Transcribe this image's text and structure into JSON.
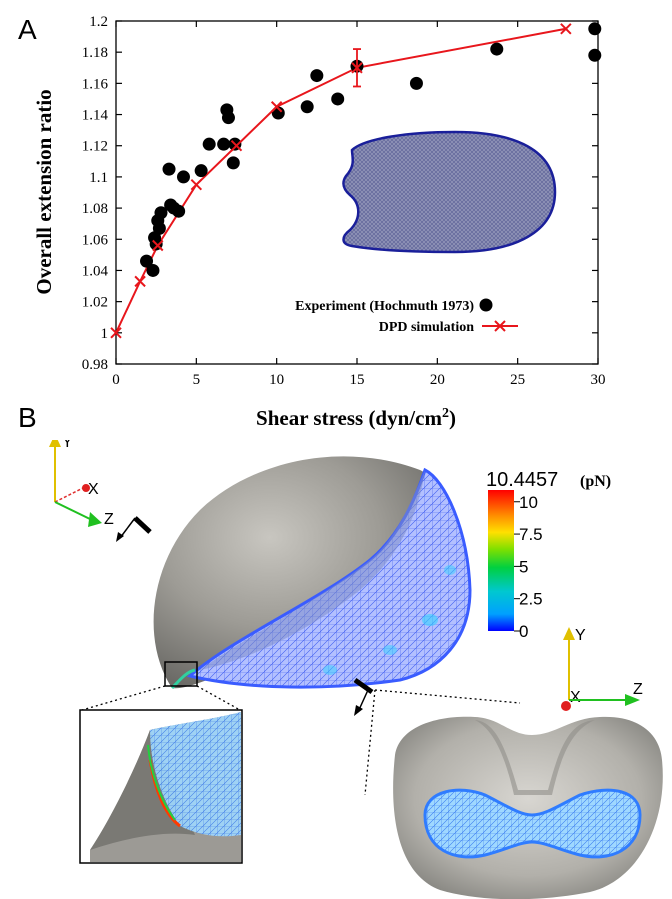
{
  "panels": {
    "a_label": "A",
    "b_label": "B"
  },
  "chart_data": {
    "type": "scatter",
    "xlabel_main": "Shear stress (dyn/cm",
    "xlabel_sup": "2",
    "xlabel_close": ")",
    "ylabel": "Overall extension ratio",
    "xlim": [
      0,
      30
    ],
    "ylim": [
      0.98,
      1.2
    ],
    "x_ticks": [
      "0",
      "5",
      "10",
      "15",
      "20",
      "25",
      "30"
    ],
    "y_ticks": [
      "0.98",
      "1",
      "1.02",
      "1.04",
      "1.06",
      "1.08",
      "1.1",
      "1.12",
      "1.14",
      "1.16",
      "1.18",
      "1.2"
    ],
    "grid": false,
    "legend_position": "lower-right",
    "series": [
      {
        "name": "Experiment (Hochmuth 1973)",
        "kind": "scatter",
        "color": "#000000",
        "x": [
          1.9,
          2.3,
          2.4,
          2.5,
          2.6,
          2.7,
          2.8,
          3.3,
          3.4,
          3.6,
          3.9,
          4.2,
          5.3,
          5.8,
          6.7,
          6.9,
          7.0,
          7.3,
          7.4,
          10.1,
          11.9,
          12.5,
          13.8,
          15.0,
          18.7,
          23.7,
          29.8,
          29.8
        ],
        "y": [
          1.046,
          1.04,
          1.061,
          1.057,
          1.072,
          1.067,
          1.077,
          1.105,
          1.082,
          1.08,
          1.078,
          1.1,
          1.104,
          1.121,
          1.121,
          1.143,
          1.138,
          1.109,
          1.121,
          1.141,
          1.145,
          1.165,
          1.15,
          1.171,
          1.16,
          1.182,
          1.195,
          1.178
        ]
      },
      {
        "name": "DPD simulation",
        "kind": "line-marker",
        "color": "#e8161c",
        "x": [
          0,
          1.5,
          2.6,
          5.0,
          7.5,
          10.0,
          15.0,
          28.0
        ],
        "y": [
          1.0,
          1.033,
          1.056,
          1.095,
          1.12,
          1.145,
          1.17,
          1.195
        ],
        "error_bar": {
          "x": 15.0,
          "low": 1.158,
          "high": 1.182
        }
      }
    ]
  },
  "colorbar": {
    "max_label": "10.4457",
    "unit": "(pN)",
    "ticks": [
      "10",
      "7.5",
      "5",
      "2.5",
      "0"
    ],
    "colors": [
      "#ff0000",
      "#ff8c00",
      "#ffe000",
      "#7fe000",
      "#00d040",
      "#00c8d0",
      "#00a0ff",
      "#0000ff"
    ]
  },
  "axes_triads": {
    "left": {
      "y": "Y",
      "x": "X",
      "z": "Z"
    },
    "right": {
      "y": "Y",
      "x": "X",
      "z": "Z"
    }
  }
}
